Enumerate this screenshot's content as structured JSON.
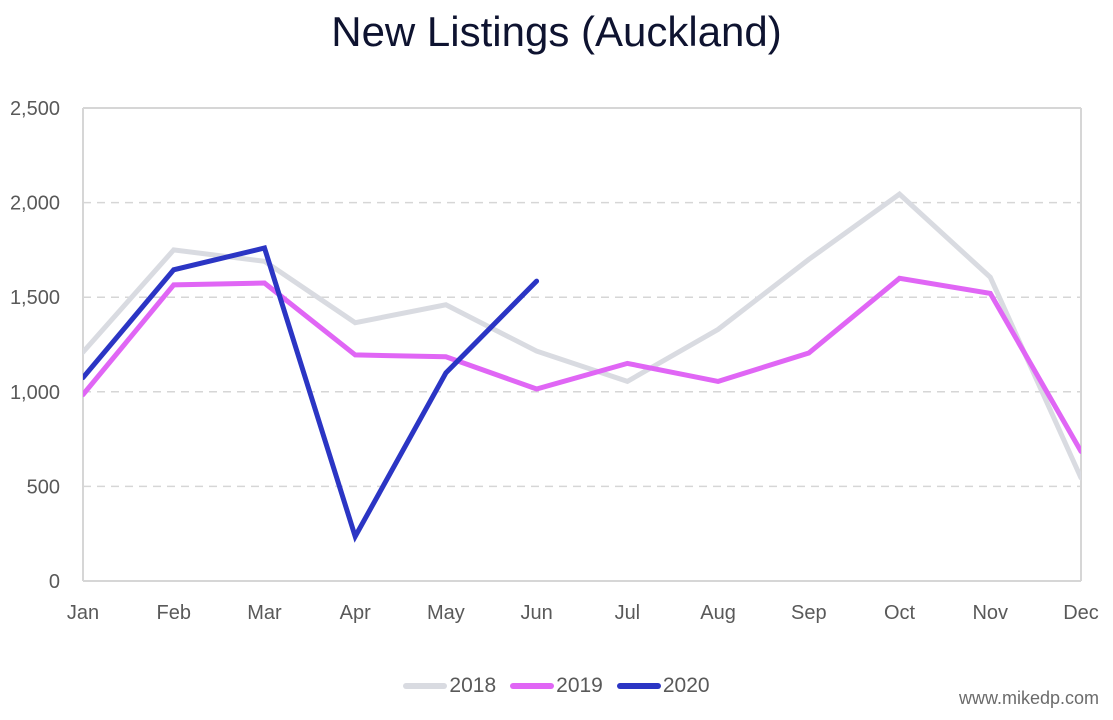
{
  "chart_data": {
    "type": "line",
    "title": "New Listings (Auckland)",
    "xlabel": "",
    "ylabel": "",
    "ylim": [
      0,
      2500
    ],
    "yticks": [
      0,
      500,
      1000,
      1500,
      2000,
      2500
    ],
    "ytick_labels": [
      "0",
      "500",
      "1,000",
      "1,500",
      "2,000",
      "2,500"
    ],
    "categories": [
      "Jan",
      "Feb",
      "Mar",
      "Apr",
      "May",
      "Jun",
      "Jul",
      "Aug",
      "Sep",
      "Oct",
      "Nov",
      "Dec"
    ],
    "grid": "horizontal dashed",
    "legend_position": "bottom",
    "series": [
      {
        "name": "2018",
        "color": "#d9dbe1",
        "values": [
          1210,
          1750,
          1690,
          1365,
          1460,
          1215,
          1055,
          1330,
          1700,
          2045,
          1605,
          545
        ]
      },
      {
        "name": "2019",
        "color": "#e066f5",
        "values": [
          985,
          1565,
          1575,
          1195,
          1185,
          1015,
          1150,
          1055,
          1205,
          1600,
          1520,
          685
        ]
      },
      {
        "name": "2020",
        "color": "#2b35c4",
        "values": [
          1075,
          1645,
          1760,
          235,
          1100,
          1585
        ]
      }
    ]
  },
  "watermark": "www.mikedp.com"
}
